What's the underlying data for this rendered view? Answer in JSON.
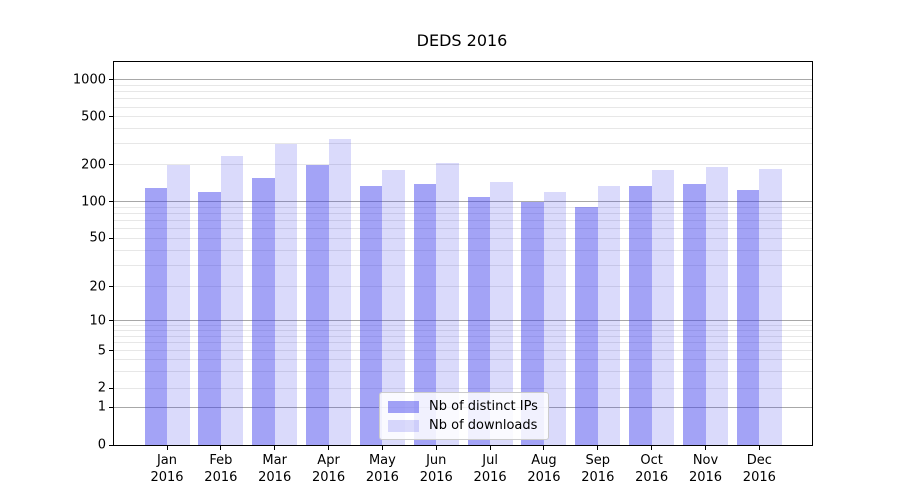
{
  "title": "DEDS 2016",
  "legend": {
    "items": [
      {
        "label": "Nb of distinct IPs"
      },
      {
        "label": "Nb of downloads"
      }
    ]
  },
  "colors": {
    "ips_bar": "rgba(60,60,235,0.47)",
    "downloads_bar": "rgba(60,60,235,0.19)",
    "major_grid": "#a8a8a8",
    "minor_grid": "#e7e7e7",
    "axis": "#000000",
    "legend_border": "#cccccc"
  },
  "chart_data": {
    "type": "bar",
    "title": "DEDS 2016",
    "categories": [
      "Jan 2016",
      "Feb 2016",
      "Mar 2016",
      "Apr 2016",
      "May 2016",
      "Jun 2016",
      "Jul 2016",
      "Aug 2016",
      "Sep 2016",
      "Oct 2016",
      "Nov 2016",
      "Dec 2016"
    ],
    "series": [
      {
        "name": "Nb of distinct IPs",
        "values": [
          130,
          120,
          155,
          200,
          135,
          140,
          108,
          100,
          90,
          135,
          140,
          125
        ]
      },
      {
        "name": "Nb of downloads",
        "values": [
          200,
          235,
          295,
          330,
          180,
          206,
          145,
          120,
          135,
          180,
          192,
          185
        ]
      }
    ],
    "xlabel": "",
    "ylabel": "",
    "yscale": "symlog",
    "ylim": [
      0,
      1400
    ],
    "yticks": [
      0,
      1,
      2,
      5,
      10,
      20,
      50,
      100,
      200,
      500,
      1000
    ],
    "grid": true,
    "legend_position": "lower center",
    "ytick_fractions": [
      [
        0,
        0
      ],
      [
        1,
        0.098
      ],
      [
        2,
        0.1486
      ],
      [
        5,
        0.2464
      ],
      [
        10,
        0.3246
      ],
      [
        20,
        0.4133
      ],
      [
        50,
        0.5393
      ],
      [
        100,
        0.6357
      ],
      [
        200,
        0.7322
      ],
      [
        500,
        0.8566
      ],
      [
        1000,
        0.9531
      ]
    ],
    "major_gridline_values": [
      1,
      10,
      100,
      1000
    ],
    "minor_gridline_values": [
      2,
      3,
      4,
      5,
      6,
      7,
      8,
      9,
      20,
      30,
      40,
      50,
      60,
      70,
      80,
      90,
      200,
      300,
      400,
      500,
      600,
      700,
      800,
      900
    ]
  }
}
